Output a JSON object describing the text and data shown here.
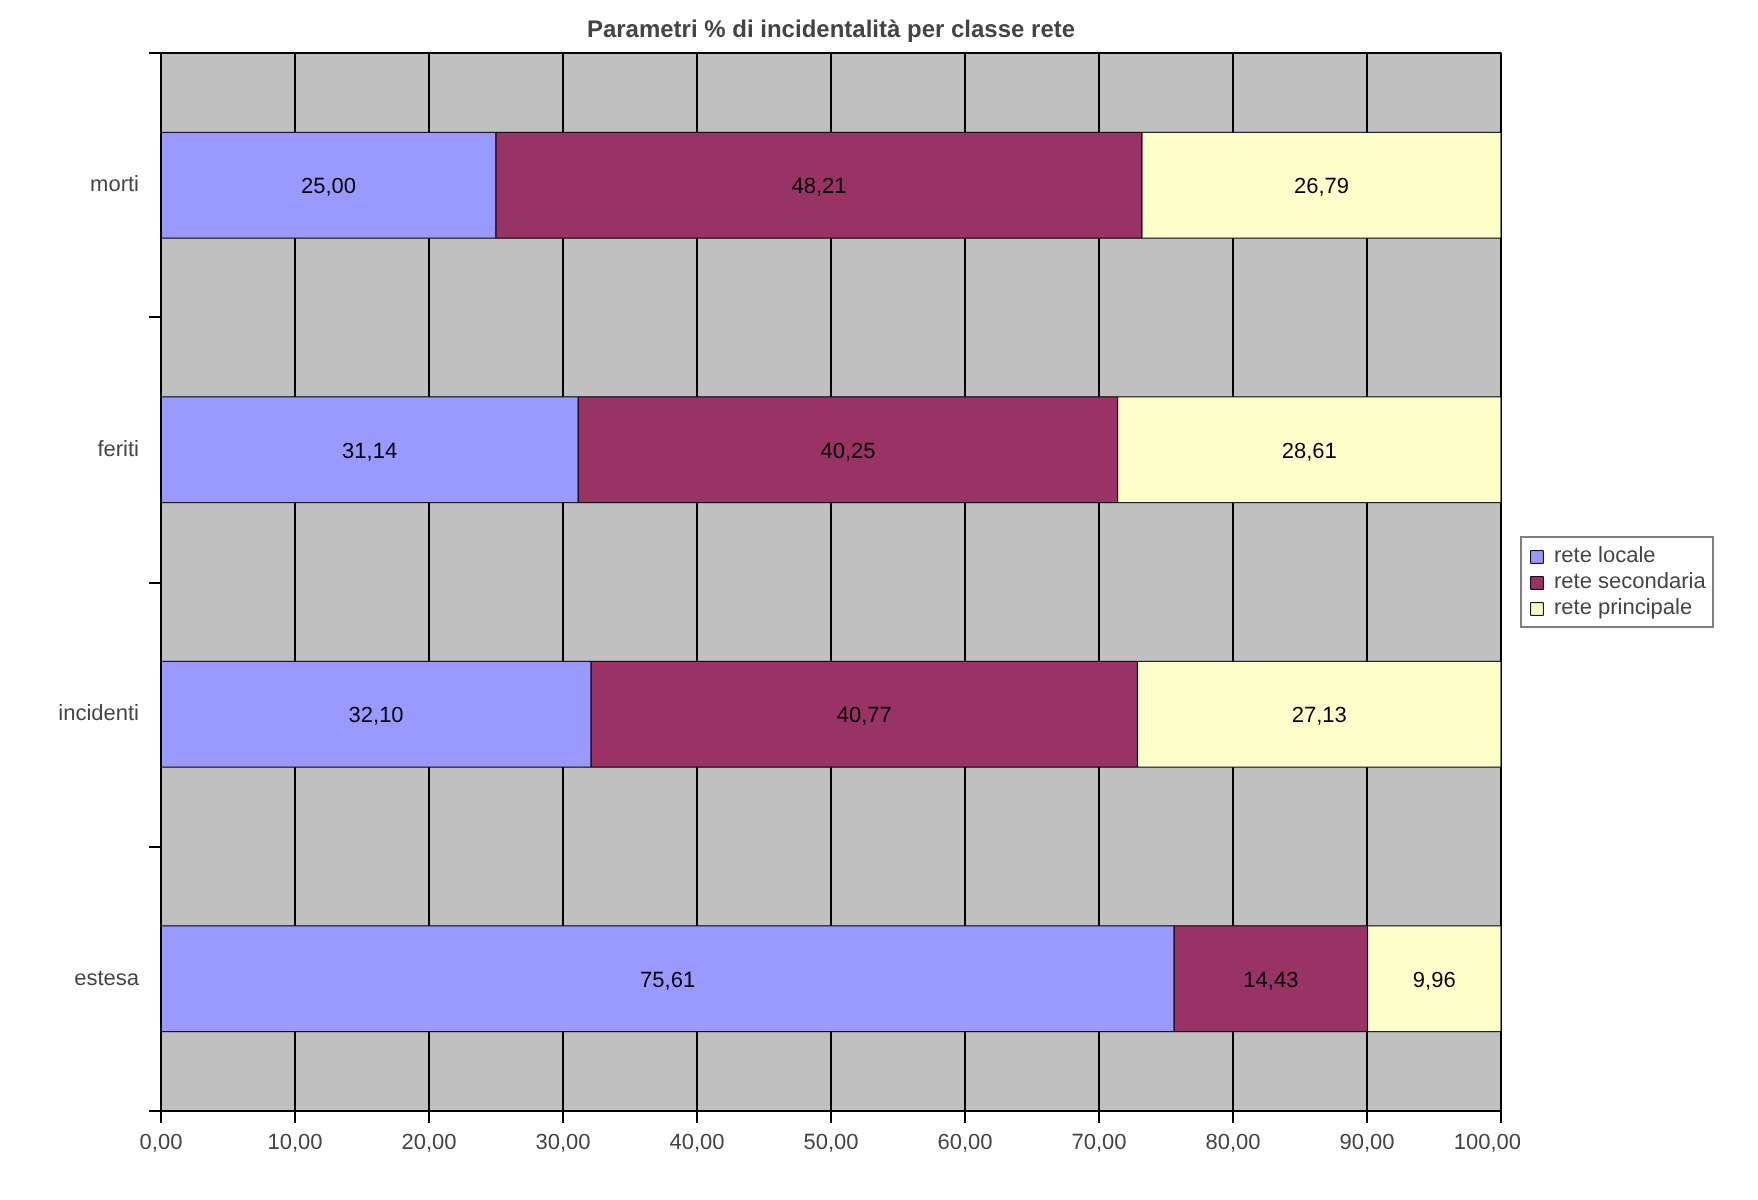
{
  "chart_data": {
    "type": "bar",
    "orientation": "horizontal",
    "stacked": true,
    "title": "Parametri % di incidentalità per classe rete",
    "categories": [
      "morti",
      "feriti",
      "incidenti",
      "estesa"
    ],
    "series": [
      {
        "name": "rete locale",
        "color": "#9999ff",
        "values": [
          25.0,
          31.14,
          32.1,
          75.61
        ],
        "value_labels": [
          "25,00",
          "31,14",
          "32,10",
          "75,61"
        ]
      },
      {
        "name": "rete secondaria",
        "color": "#993366",
        "values": [
          48.21,
          40.25,
          40.77,
          14.43
        ],
        "value_labels": [
          "48,21",
          "40,25",
          "40,77",
          "14,43"
        ]
      },
      {
        "name": "rete principale",
        "color": "#ffffcc",
        "values": [
          26.79,
          28.61,
          27.13,
          9.96
        ],
        "value_labels": [
          "26,79",
          "28,61",
          "27,13",
          "9,96"
        ]
      }
    ],
    "xlim": [
      0,
      100
    ],
    "xticks": [
      {
        "value": 0,
        "label": "0,00"
      },
      {
        "value": 10,
        "label": "10,00"
      },
      {
        "value": 20,
        "label": "20,00"
      },
      {
        "value": 30,
        "label": "30,00"
      },
      {
        "value": 40,
        "label": "40,00"
      },
      {
        "value": 50,
        "label": "50,00"
      },
      {
        "value": 60,
        "label": "60,00"
      },
      {
        "value": 70,
        "label": "70,00"
      },
      {
        "value": 80,
        "label": "80,00"
      },
      {
        "value": 90,
        "label": "90,00"
      },
      {
        "value": 100,
        "label": "100,00"
      }
    ],
    "grid": "x",
    "legend": "right"
  }
}
